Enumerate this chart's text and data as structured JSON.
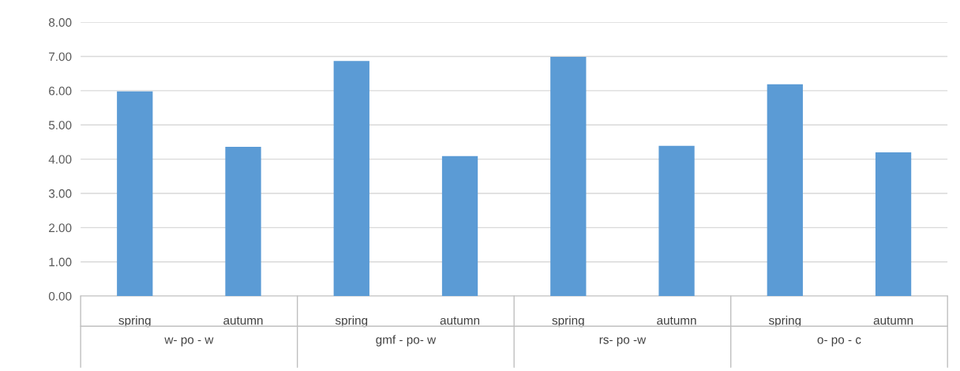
{
  "chart_data": {
    "type": "bar",
    "categories": [
      "spring",
      "autumn",
      "spring",
      "autumn",
      "spring",
      "autumn",
      "spring",
      "autumn"
    ],
    "values": [
      5.98,
      4.36,
      6.87,
      4.09,
      6.99,
      4.39,
      6.19,
      4.2
    ],
    "color": "#5b9bd5",
    "ylim": [
      0,
      8
    ],
    "yticks": [
      {
        "value": 0,
        "label": "0.00"
      },
      {
        "value": 1,
        "label": "1.00"
      },
      {
        "value": 2,
        "label": "2.00"
      },
      {
        "value": 3,
        "label": "3.00"
      },
      {
        "value": 4,
        "label": "4.00"
      },
      {
        "value": 5,
        "label": "5.00"
      },
      {
        "value": 6,
        "label": "6.00"
      },
      {
        "value": 7,
        "label": "7.00"
      },
      {
        "value": 8,
        "label": "8.00"
      }
    ],
    "grid": "y",
    "annotations": [
      "w- po - w",
      "gmf - po- w",
      "rs- po -w",
      "o- po - c"
    ]
  }
}
